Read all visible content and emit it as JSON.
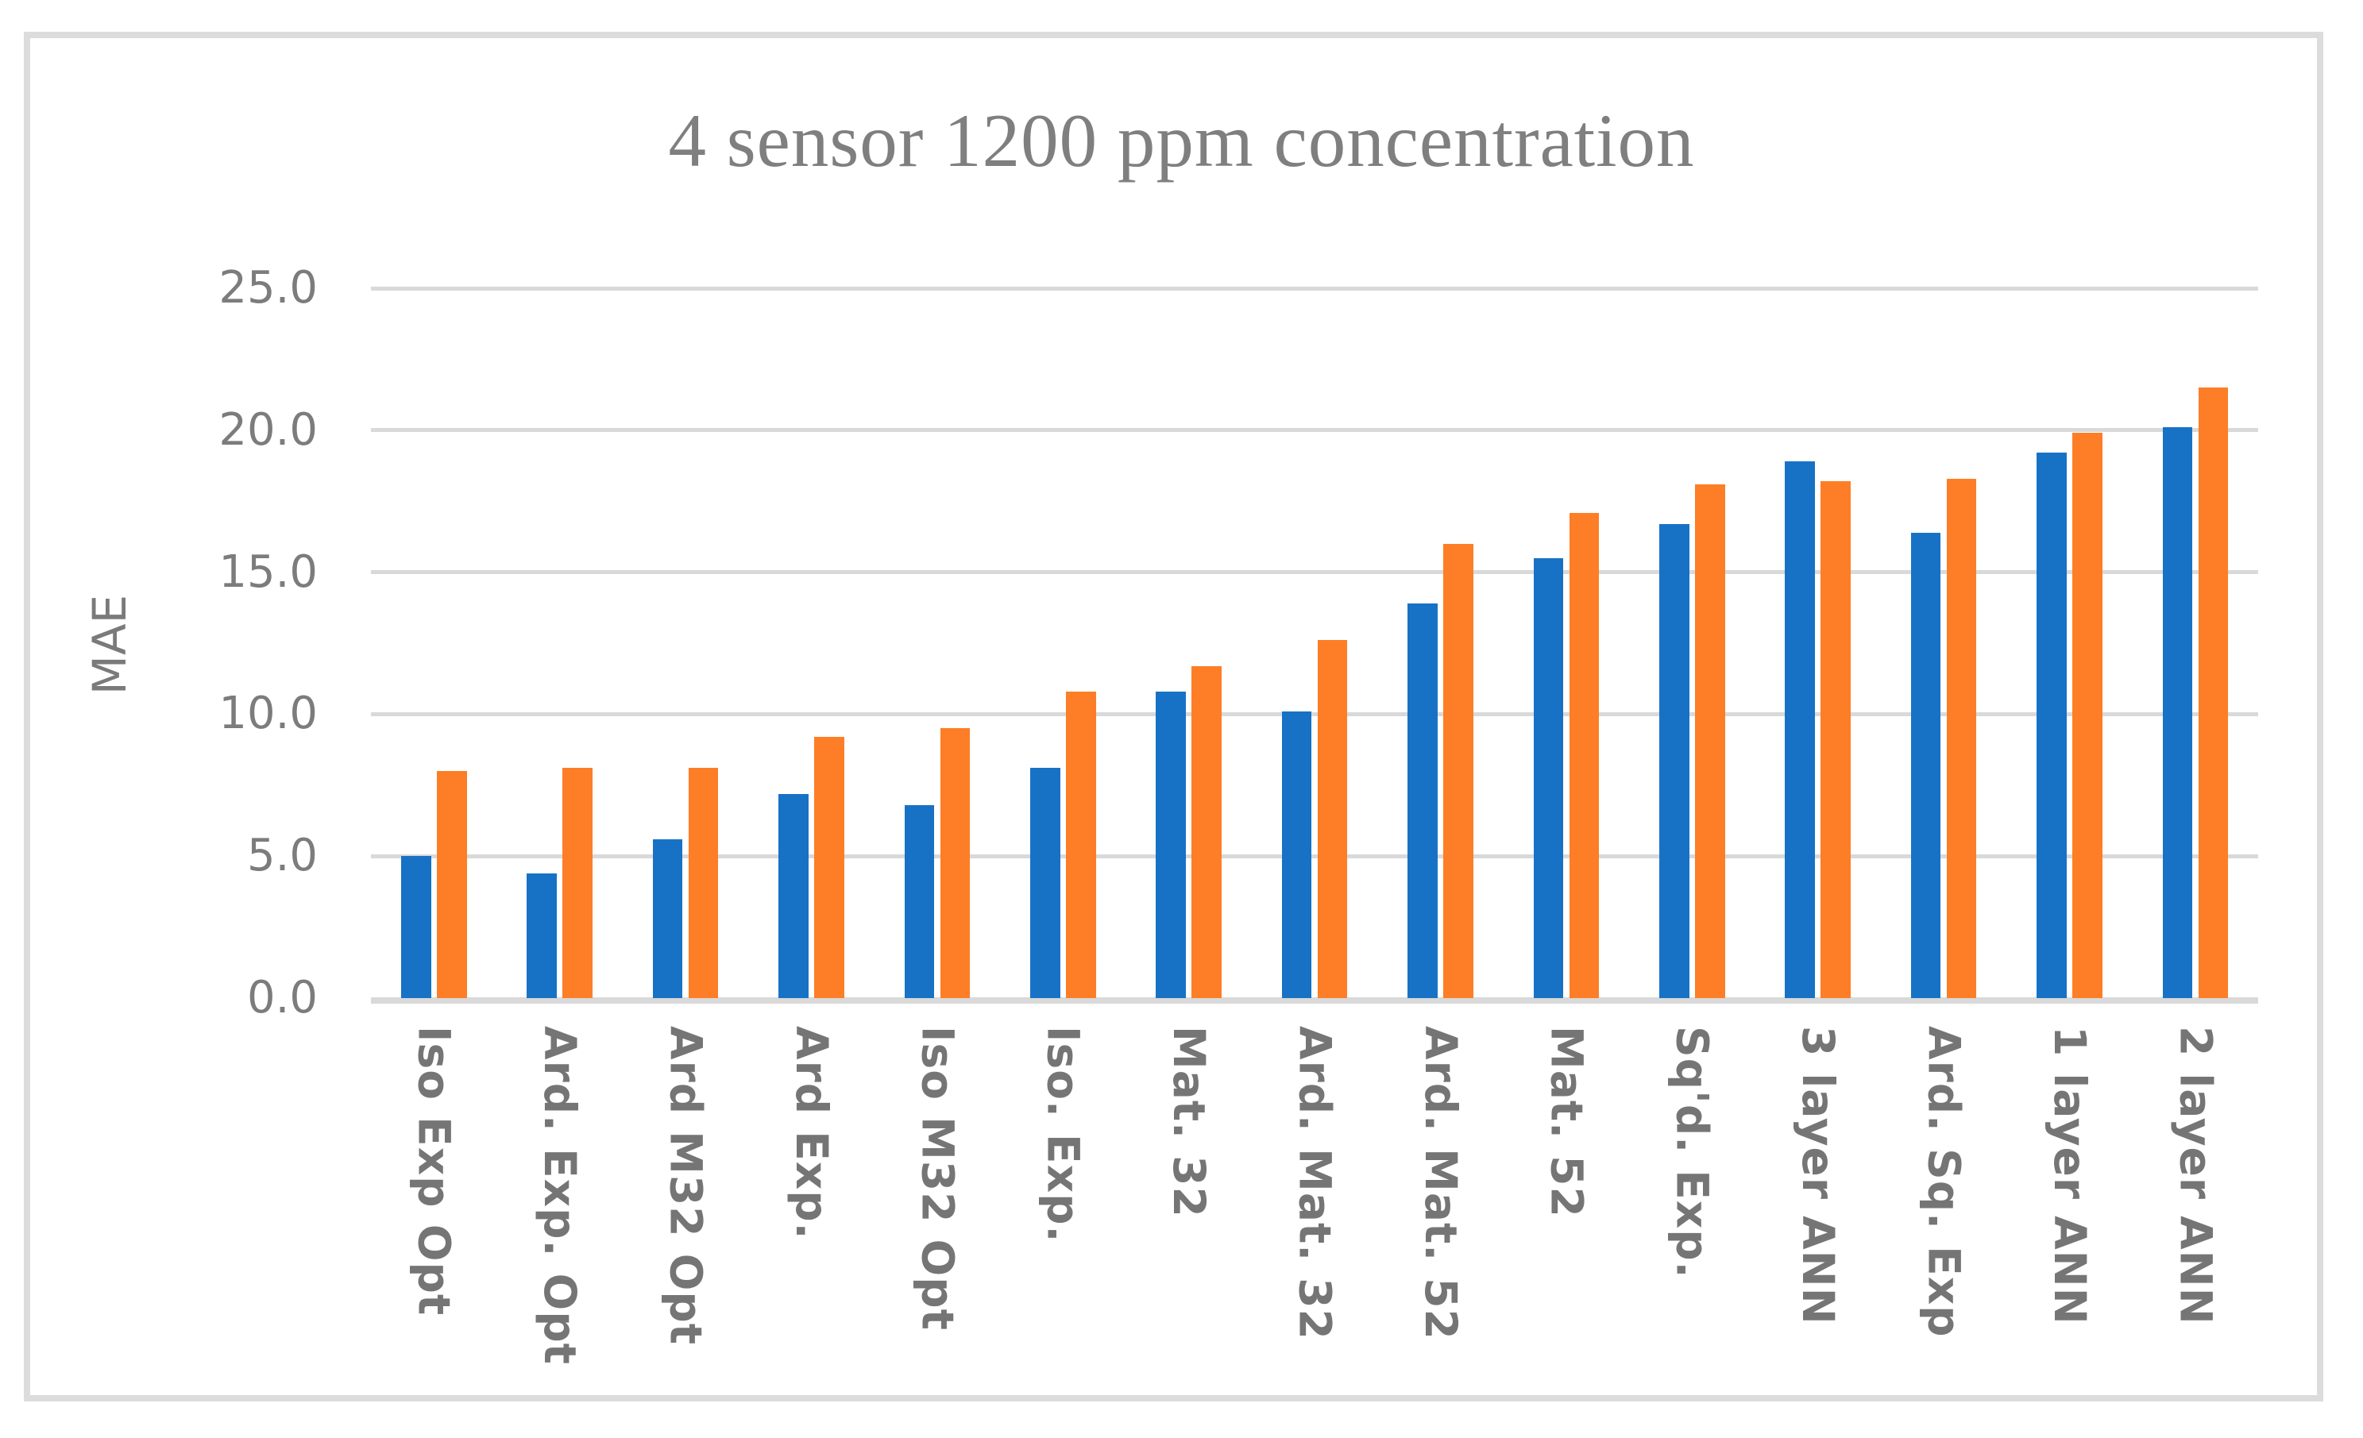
{
  "figure": {
    "title": "4 sensor 1200 ppm concentration",
    "y_axis_title": "MAE"
  },
  "colors": {
    "bar_blue": "#1772C6",
    "bar_orange": "#FD7E26",
    "gridline": "#D9D9D9",
    "axis_line": "#D9D9D9",
    "frame_border": "#DCDCDC",
    "title_text": "#7F7F7F",
    "tick_text": "#7C7C7C"
  },
  "chart_data": {
    "type": "bar",
    "title": "4 sensor 1200 ppm concentration",
    "xlabel": "",
    "ylabel": "MAE",
    "ylim": [
      0,
      25
    ],
    "ytick_interval": 5,
    "ytick_labels": [
      "0.0",
      "5.0",
      "10.0",
      "15.0",
      "20.0",
      "25.0"
    ],
    "grid": true,
    "legend": false,
    "categories": [
      "Iso Exp Opt",
      "Ard. Exp. Opt",
      "Ard M32 Opt",
      "Ard Exp.",
      "Iso M32 Opt",
      "Iso. Exp.",
      "Mat. 32",
      "Ard. Mat. 32",
      "Ard. Mat. 52",
      "Mat. 52",
      "Sq'd. Exp.",
      "3 layer ANN",
      "Ard. Sq. Exp",
      "1 layer ANN",
      "2 layer ANN"
    ],
    "series": [
      {
        "name": "blue",
        "color": "#1772C6",
        "values": [
          5.0,
          4.4,
          5.6,
          7.2,
          6.8,
          8.1,
          10.8,
          10.1,
          13.9,
          15.5,
          16.7,
          18.9,
          16.4,
          19.2,
          20.1
        ]
      },
      {
        "name": "orange",
        "color": "#FD7E26",
        "values": [
          8.0,
          8.1,
          8.1,
          9.2,
          9.5,
          10.8,
          11.7,
          12.6,
          16.0,
          17.1,
          18.1,
          18.2,
          18.3,
          19.9,
          21.5
        ]
      }
    ]
  }
}
